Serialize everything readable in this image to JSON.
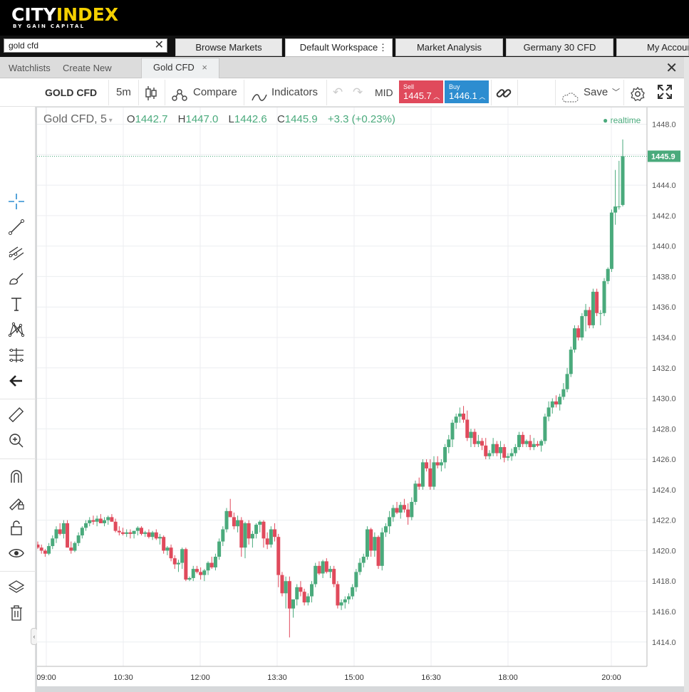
{
  "brand": {
    "name_part1": "CITY",
    "name_part2": "INDEX",
    "tagline": "BY GAIN CAPITAL"
  },
  "search": {
    "value": "gold cfd"
  },
  "nav_tabs": [
    {
      "label": "Browse Markets"
    },
    {
      "label": "Default Workspace"
    },
    {
      "label": "Market Analysis"
    },
    {
      "label": "Germany 30 CFD"
    },
    {
      "label": "My Account"
    }
  ],
  "panel_tabs": {
    "watchlists": "Watchlists",
    "create_new": "Create New",
    "active": "Gold CFD"
  },
  "toolbar": {
    "symbol": "GOLD CFD",
    "interval": "5m",
    "compare": "Compare",
    "indicators": "Indicators",
    "price_type": "MID",
    "sell_label": "Sell",
    "sell_price": "1445.7",
    "buy_label": "Buy",
    "buy_price": "1446.1",
    "save": "Save"
  },
  "legend": {
    "symbol": "Gold CFD, 5",
    "open_label": "O",
    "open": "1442.7",
    "high_label": "H",
    "high": "1447.0",
    "low_label": "L",
    "low": "1442.6",
    "close_label": "C",
    "close": "1445.9",
    "change": "+3.3 (+0.23%)",
    "realtime": "realtime"
  },
  "colors": {
    "up": "#4aaa7c",
    "down": "#e04a5c",
    "sell": "#e04a5c",
    "buy": "#2d8dd0",
    "brand_accent": "#f4d000"
  },
  "chart_data": {
    "type": "candlestick",
    "title": "Gold CFD, 5",
    "ylim": [
      1412.4,
      1449.1
    ],
    "yticks": [
      1414.0,
      1416.0,
      1418.0,
      1420.0,
      1422.0,
      1424.0,
      1426.0,
      1428.0,
      1430.0,
      1432.0,
      1434.0,
      1436.0,
      1438.0,
      1440.0,
      1442.0,
      1444.0,
      1446.0,
      1448.0
    ],
    "xticks": [
      "09:00",
      "10:30",
      "12:00",
      "13:30",
      "15:00",
      "16:30",
      "18:00",
      "20:00"
    ],
    "last_price": "1445.9",
    "grid": true,
    "ohlc": [
      [
        1420.4,
        1420.6,
        1420.1,
        1420.2
      ],
      [
        1420.2,
        1420.4,
        1419.8,
        1420.0
      ],
      [
        1420.0,
        1420.1,
        1419.6,
        1419.8
      ],
      [
        1419.8,
        1420.5,
        1419.7,
        1420.3
      ],
      [
        1420.3,
        1421.0,
        1420.1,
        1420.8
      ],
      [
        1420.8,
        1421.6,
        1420.5,
        1421.4
      ],
      [
        1421.4,
        1421.8,
        1421.0,
        1421.1
      ],
      [
        1421.1,
        1422.0,
        1420.8,
        1421.8
      ],
      [
        1421.8,
        1422.0,
        1420.2,
        1420.2
      ],
      [
        1420.2,
        1420.6,
        1419.8,
        1420.0
      ],
      [
        1420.0,
        1420.6,
        1419.9,
        1420.5
      ],
      [
        1420.5,
        1421.2,
        1420.3,
        1421.0
      ],
      [
        1421.0,
        1421.6,
        1420.8,
        1421.5
      ],
      [
        1421.5,
        1422.0,
        1421.3,
        1421.8
      ],
      [
        1421.8,
        1422.2,
        1421.6,
        1422.0
      ],
      [
        1422.0,
        1422.3,
        1421.7,
        1421.9
      ],
      [
        1421.9,
        1422.3,
        1421.6,
        1422.1
      ],
      [
        1422.1,
        1422.4,
        1421.8,
        1421.8
      ],
      [
        1421.8,
        1422.2,
        1421.6,
        1422.0
      ],
      [
        1422.0,
        1422.3,
        1421.7,
        1422.2
      ],
      [
        1422.2,
        1422.4,
        1421.9,
        1421.9
      ],
      [
        1421.9,
        1422.1,
        1421.2,
        1421.3
      ],
      [
        1421.3,
        1421.6,
        1421.0,
        1421.2
      ],
      [
        1421.2,
        1421.5,
        1421.0,
        1421.1
      ],
      [
        1421.1,
        1421.4,
        1420.9,
        1421.2
      ],
      [
        1421.2,
        1421.4,
        1420.8,
        1421.1
      ],
      [
        1421.1,
        1421.3,
        1420.8,
        1421.3
      ],
      [
        1421.3,
        1421.6,
        1421.0,
        1421.5
      ],
      [
        1421.5,
        1421.6,
        1421.0,
        1421.1
      ],
      [
        1421.1,
        1421.3,
        1420.9,
        1421.2
      ],
      [
        1421.2,
        1421.4,
        1420.8,
        1420.9
      ],
      [
        1420.9,
        1421.3,
        1420.7,
        1421.2
      ],
      [
        1421.2,
        1421.4,
        1420.7,
        1420.8
      ],
      [
        1420.8,
        1421.1,
        1420.4,
        1420.9
      ],
      [
        1420.9,
        1421.0,
        1419.8,
        1420.0
      ],
      [
        1420.0,
        1420.3,
        1419.7,
        1420.2
      ],
      [
        1420.2,
        1420.4,
        1419.3,
        1419.5
      ],
      [
        1419.5,
        1419.7,
        1418.8,
        1419.1
      ],
      [
        1419.1,
        1419.4,
        1418.6,
        1419.2
      ],
      [
        1419.2,
        1420.2,
        1418.8,
        1420.1
      ],
      [
        1420.1,
        1420.2,
        1418.0,
        1418.1
      ],
      [
        1418.1,
        1418.3,
        1418.0,
        1418.2
      ],
      [
        1418.2,
        1419.0,
        1418.0,
        1418.8
      ],
      [
        1418.8,
        1419.0,
        1418.5,
        1418.6
      ],
      [
        1418.6,
        1418.9,
        1418.1,
        1418.4
      ],
      [
        1418.4,
        1418.8,
        1418.0,
        1418.7
      ],
      [
        1418.7,
        1419.3,
        1418.4,
        1419.2
      ],
      [
        1419.2,
        1419.6,
        1418.8,
        1418.9
      ],
      [
        1418.9,
        1419.8,
        1418.7,
        1419.6
      ],
      [
        1419.6,
        1420.8,
        1419.4,
        1420.6
      ],
      [
        1420.6,
        1421.6,
        1420.3,
        1421.4
      ],
      [
        1421.4,
        1422.8,
        1421.2,
        1422.6
      ],
      [
        1422.6,
        1423.4,
        1422.2,
        1422.2
      ],
      [
        1422.2,
        1422.5,
        1421.4,
        1421.6
      ],
      [
        1421.6,
        1422.3,
        1421.2,
        1422.0
      ],
      [
        1422.0,
        1422.2,
        1419.6,
        1420.2
      ],
      [
        1420.2,
        1421.9,
        1419.5,
        1421.8
      ],
      [
        1421.8,
        1422.0,
        1420.4,
        1420.8
      ],
      [
        1420.8,
        1421.3,
        1420.2,
        1421.1
      ],
      [
        1421.1,
        1421.8,
        1420.8,
        1421.7
      ],
      [
        1421.7,
        1422.0,
        1421.2,
        1421.9
      ],
      [
        1421.9,
        1422.0,
        1420.2,
        1420.8
      ],
      [
        1420.8,
        1421.2,
        1420.1,
        1420.4
      ],
      [
        1420.4,
        1421.6,
        1420.2,
        1421.4
      ],
      [
        1421.4,
        1421.8,
        1420.6,
        1420.9
      ],
      [
        1420.9,
        1421.1,
        1417.6,
        1418.4
      ],
      [
        1418.4,
        1418.6,
        1417.0,
        1417.2
      ],
      [
        1417.2,
        1418.3,
        1416.2,
        1418.0
      ],
      [
        1418.0,
        1418.3,
        1414.3,
        1416.2
      ],
      [
        1416.2,
        1416.6,
        1415.6,
        1416.8
      ],
      [
        1416.8,
        1417.8,
        1416.4,
        1417.6
      ],
      [
        1417.6,
        1418.0,
        1417.0,
        1417.3
      ],
      [
        1417.3,
        1417.5,
        1416.4,
        1416.6
      ],
      [
        1416.6,
        1417.2,
        1416.4,
        1417.0
      ],
      [
        1417.0,
        1418.0,
        1416.6,
        1417.8
      ],
      [
        1417.8,
        1419.2,
        1417.6,
        1419.0
      ],
      [
        1419.0,
        1419.3,
        1418.4,
        1418.5
      ],
      [
        1418.5,
        1419.4,
        1418.2,
        1419.3
      ],
      [
        1419.3,
        1419.5,
        1418.5,
        1418.6
      ],
      [
        1418.6,
        1419.0,
        1418.2,
        1418.8
      ],
      [
        1418.8,
        1419.0,
        1417.6,
        1417.8
      ],
      [
        1417.8,
        1418.0,
        1416.2,
        1416.4
      ],
      [
        1416.4,
        1416.8,
        1416.1,
        1416.6
      ],
      [
        1416.6,
        1417.0,
        1416.2,
        1416.8
      ],
      [
        1416.8,
        1417.2,
        1416.5,
        1417.0
      ],
      [
        1417.0,
        1417.8,
        1416.8,
        1417.6
      ],
      [
        1417.6,
        1418.8,
        1417.3,
        1418.6
      ],
      [
        1418.6,
        1419.5,
        1418.4,
        1419.2
      ],
      [
        1419.2,
        1419.8,
        1418.9,
        1419.6
      ],
      [
        1419.6,
        1421.6,
        1419.4,
        1421.4
      ],
      [
        1421.4,
        1421.5,
        1419.6,
        1420.0
      ],
      [
        1420.0,
        1421.2,
        1419.6,
        1420.9
      ],
      [
        1420.9,
        1421.0,
        1418.8,
        1419.0
      ],
      [
        1419.0,
        1421.5,
        1418.7,
        1421.2
      ],
      [
        1421.2,
        1421.8,
        1420.9,
        1421.6
      ],
      [
        1421.6,
        1422.6,
        1421.1,
        1422.2
      ],
      [
        1422.2,
        1423.0,
        1421.9,
        1422.8
      ],
      [
        1422.8,
        1423.2,
        1422.4,
        1422.5
      ],
      [
        1422.5,
        1423.2,
        1422.1,
        1423.0
      ],
      [
        1423.0,
        1423.4,
        1422.5,
        1422.7
      ],
      [
        1422.7,
        1423.1,
        1421.7,
        1422.2
      ],
      [
        1422.2,
        1423.5,
        1422.0,
        1423.2
      ],
      [
        1423.2,
        1424.6,
        1423.0,
        1424.4
      ],
      [
        1424.4,
        1424.8,
        1424.0,
        1424.2
      ],
      [
        1424.2,
        1426.0,
        1424.0,
        1425.8
      ],
      [
        1425.8,
        1426.0,
        1425.2,
        1425.4
      ],
      [
        1425.4,
        1426.0,
        1424.0,
        1424.2
      ],
      [
        1424.2,
        1426.2,
        1424.0,
        1425.8
      ],
      [
        1425.8,
        1426.2,
        1425.4,
        1425.6
      ],
      [
        1425.6,
        1426.0,
        1425.2,
        1425.8
      ],
      [
        1425.8,
        1427.0,
        1425.4,
        1426.8
      ],
      [
        1426.8,
        1427.6,
        1426.4,
        1427.3
      ],
      [
        1427.3,
        1428.6,
        1426.8,
        1428.4
      ],
      [
        1428.4,
        1429.0,
        1428.0,
        1428.8
      ],
      [
        1428.8,
        1429.4,
        1428.4,
        1429.0
      ],
      [
        1429.0,
        1429.5,
        1428.4,
        1428.6
      ],
      [
        1428.6,
        1429.2,
        1427.2,
        1427.4
      ],
      [
        1427.4,
        1428.0,
        1426.8,
        1427.8
      ],
      [
        1427.8,
        1428.0,
        1426.8,
        1427.0
      ],
      [
        1427.0,
        1427.6,
        1426.8,
        1427.2
      ],
      [
        1427.2,
        1427.4,
        1426.6,
        1426.9
      ],
      [
        1426.9,
        1427.4,
        1426.0,
        1426.2
      ],
      [
        1426.2,
        1426.6,
        1426.0,
        1426.4
      ],
      [
        1426.4,
        1427.4,
        1426.2,
        1427.0
      ],
      [
        1427.0,
        1427.2,
        1426.2,
        1426.4
      ],
      [
        1426.4,
        1427.2,
        1426.0,
        1426.8
      ],
      [
        1426.8,
        1427.0,
        1425.8,
        1426.1
      ],
      [
        1426.1,
        1426.4,
        1425.9,
        1426.2
      ],
      [
        1426.2,
        1426.7,
        1425.9,
        1426.4
      ],
      [
        1426.4,
        1427.0,
        1426.2,
        1426.8
      ],
      [
        1426.8,
        1427.8,
        1426.6,
        1427.6
      ],
      [
        1427.6,
        1427.8,
        1426.8,
        1427.0
      ],
      [
        1427.0,
        1427.3,
        1426.8,
        1427.2
      ],
      [
        1427.2,
        1427.6,
        1426.6,
        1426.8
      ],
      [
        1426.8,
        1427.4,
        1426.6,
        1427.0
      ],
      [
        1427.0,
        1427.2,
        1426.8,
        1426.9
      ],
      [
        1426.9,
        1427.3,
        1426.5,
        1427.2
      ],
      [
        1427.2,
        1429.0,
        1427.0,
        1428.8
      ],
      [
        1428.8,
        1429.8,
        1428.5,
        1429.4
      ],
      [
        1429.4,
        1430.0,
        1429.0,
        1429.8
      ],
      [
        1429.8,
        1430.2,
        1429.4,
        1429.6
      ],
      [
        1429.6,
        1430.3,
        1429.2,
        1430.1
      ],
      [
        1430.1,
        1431.0,
        1429.9,
        1430.6
      ],
      [
        1430.6,
        1432.0,
        1430.4,
        1431.6
      ],
      [
        1431.6,
        1433.4,
        1431.4,
        1433.2
      ],
      [
        1433.2,
        1434.8,
        1433.0,
        1434.6
      ],
      [
        1434.6,
        1434.8,
        1433.8,
        1434.0
      ],
      [
        1434.0,
        1435.6,
        1433.8,
        1435.4
      ],
      [
        1435.4,
        1436.2,
        1434.4,
        1435.8
      ],
      [
        1435.8,
        1436.0,
        1434.6,
        1434.8
      ],
      [
        1434.8,
        1437.2,
        1434.6,
        1437.0
      ],
      [
        1437.0,
        1437.2,
        1435.4,
        1435.6
      ],
      [
        1435.6,
        1435.8,
        1434.8,
        1435.6
      ],
      [
        1435.6,
        1437.9,
        1435.4,
        1437.7
      ],
      [
        1437.7,
        1438.6,
        1437.5,
        1438.5
      ],
      [
        1438.5,
        1442.4,
        1438.3,
        1442.2
      ],
      [
        1442.2,
        1445.0,
        1441.4,
        1442.6
      ],
      [
        1442.6,
        1445.6,
        1442.4,
        1442.6
      ],
      [
        1442.7,
        1447.0,
        1442.6,
        1445.9
      ]
    ]
  }
}
